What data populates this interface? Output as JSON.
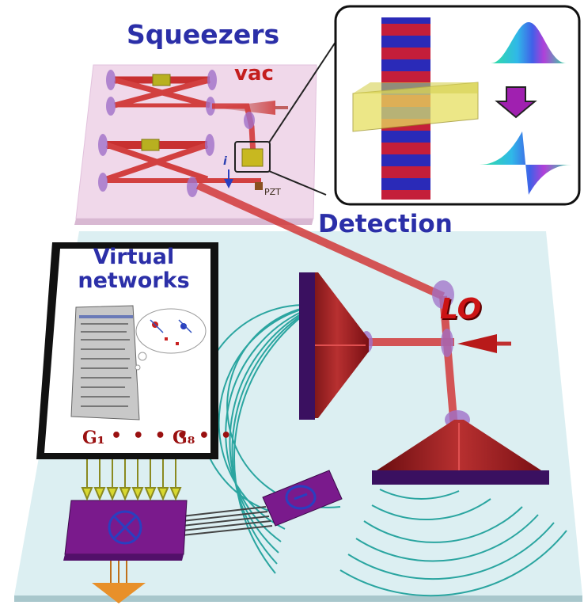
{
  "labels": {
    "squeezers": "Squeezers",
    "detection": "Detection",
    "vac": "vac",
    "pzt": "PZT",
    "i": "i",
    "lo": "LO",
    "virtual_networks": "Virtual networks",
    "g1": "G₁",
    "dots": "• • • • • •",
    "g8": "G₈",
    "multiply_symbol": "⊗",
    "divide_symbol": "⊖"
  },
  "colors": {
    "squeezer_plate": "#f0d8ea",
    "floor": "#dceff2",
    "beam": "#d23a3a",
    "horn": "#9b1818",
    "purple_box": "#7a1a8c",
    "fiber": "#2aa5a0",
    "label_blue": "#2b2fa8",
    "label_red": "#c41e1e"
  }
}
